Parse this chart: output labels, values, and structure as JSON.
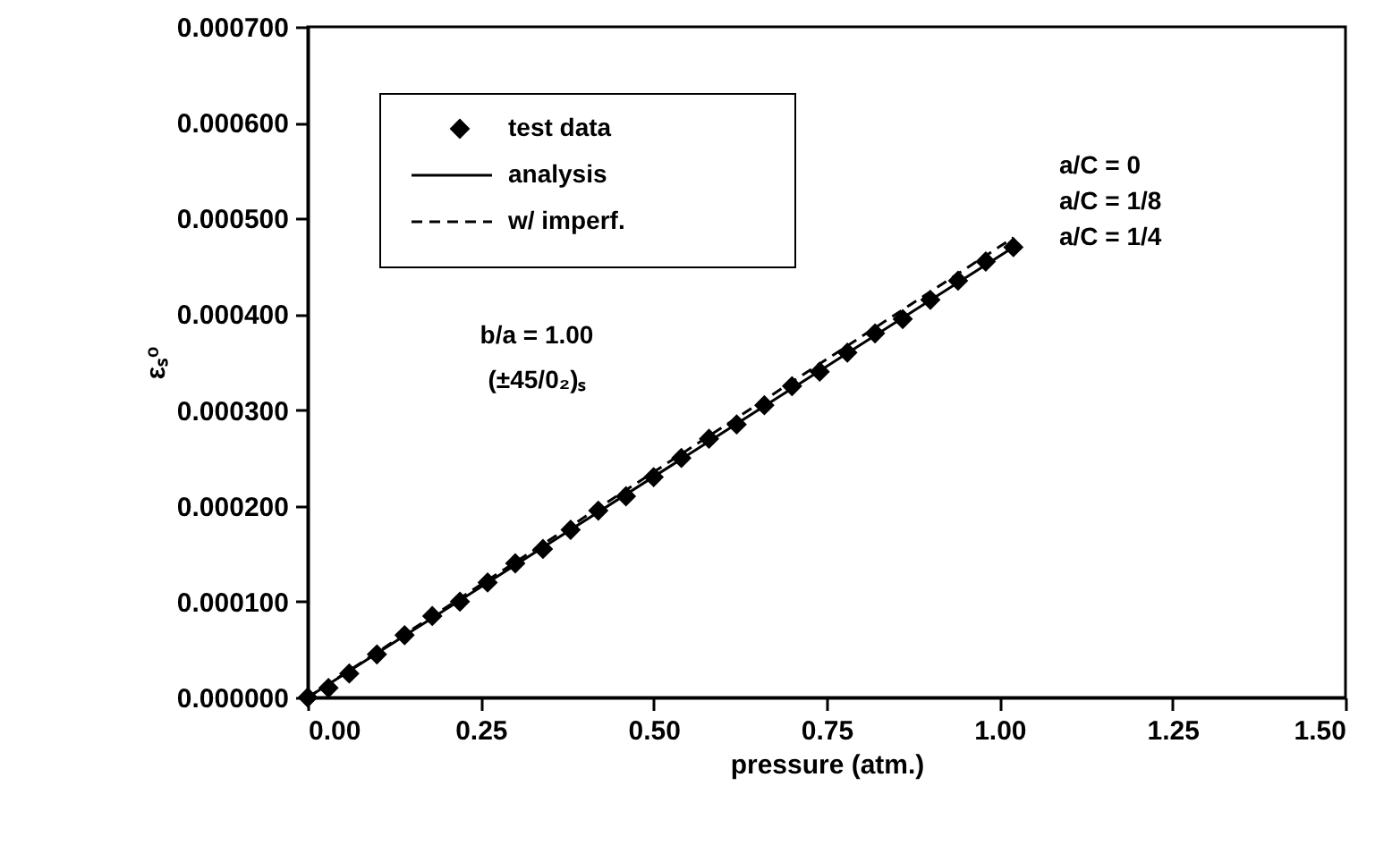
{
  "chart_data": {
    "type": "line",
    "xlabel": "pressure (atm.)",
    "ylabel": "εₛᵒ",
    "xlim": [
      0,
      1.5
    ],
    "ylim": [
      0,
      0.0007
    ],
    "xticks": [
      {
        "value": 0,
        "label": "0.00"
      },
      {
        "value": 0.25,
        "label": "0.25"
      },
      {
        "value": 0.5,
        "label": "0.50"
      },
      {
        "value": 0.75,
        "label": "0.75"
      },
      {
        "value": 1,
        "label": "1.00"
      },
      {
        "value": 1.25,
        "label": "1.25"
      },
      {
        "value": 1.5,
        "label": "1.50"
      }
    ],
    "yticks": [
      {
        "value": 0,
        "label": "0.000000"
      },
      {
        "value": 0.0001,
        "label": "0.000100"
      },
      {
        "value": 0.0002,
        "label": "0.000200"
      },
      {
        "value": 0.0003,
        "label": "0.000300"
      },
      {
        "value": 0.0004,
        "label": "0.000400"
      },
      {
        "value": 0.0005,
        "label": "0.000500"
      },
      {
        "value": 0.0006,
        "label": "0.000600"
      },
      {
        "value": 0.0007,
        "label": "0.000700"
      }
    ],
    "grid": false,
    "legend": "top left",
    "series": [
      {
        "name": "test data",
        "type": "scatter",
        "marker": "diamond",
        "color": "#000000",
        "x": [
          0,
          0.03,
          0.06,
          0.1,
          0.14,
          0.18,
          0.22,
          0.26,
          0.3,
          0.34,
          0.38,
          0.42,
          0.46,
          0.5,
          0.54,
          0.58,
          0.62,
          0.66,
          0.7,
          0.74,
          0.78,
          0.82,
          0.86,
          0.9,
          0.94,
          0.98,
          1.02
        ],
        "values": [
          0,
          1e-05,
          2.5e-05,
          4.5e-05,
          6.5e-05,
          8.5e-05,
          0.0001,
          0.00012,
          0.00014,
          0.000155,
          0.000175,
          0.000195,
          0.00021,
          0.00023,
          0.00025,
          0.00027,
          0.000285,
          0.000305,
          0.000325,
          0.00034,
          0.00036,
          0.00038,
          0.000395,
          0.000415,
          0.000435,
          0.000455,
          0.00047
        ]
      },
      {
        "name": "analysis",
        "line_style": "solid",
        "color": "#000000",
        "x": [
          0,
          1.02
        ],
        "values": [
          0,
          0.00047
        ]
      },
      {
        "name": "w/ imperf.",
        "line_style": "dashed",
        "color": "#000000",
        "x": [
          0,
          1.02
        ],
        "values": [
          0,
          0.00048
        ]
      }
    ],
    "annotations": [
      "b/a = 1.00",
      "(±45/0₂)ₛ",
      "a/C = 0",
      "a/C = 1/8",
      "a/C = 1/4"
    ]
  }
}
